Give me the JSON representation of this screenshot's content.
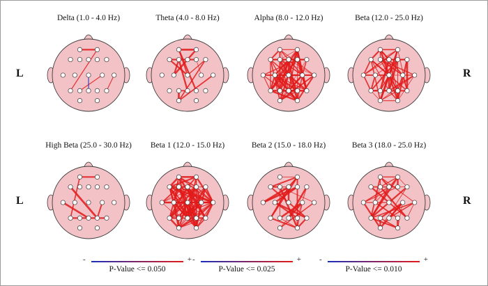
{
  "side_labels": {
    "left": "L",
    "right": "R"
  },
  "colors": {
    "head_fill": "#f2c2c6",
    "head_stroke": "#3a3a3a",
    "edge_strong": "#e21a1a",
    "edge_weak": "#1a2fb8",
    "electrode_fill": "#ffffff"
  },
  "panels": [
    {
      "title": "Delta (1.0 - 4.0 Hz)",
      "connection_density": 0.03,
      "has_weak_edge": true
    },
    {
      "title": "Theta (4.0 - 8.0 Hz)",
      "connection_density": 0.12,
      "has_weak_edge": false
    },
    {
      "title": "Alpha (8.0 - 12.0 Hz)",
      "connection_density": 0.45,
      "has_weak_edge": false
    },
    {
      "title": "Beta (12.0 - 25.0 Hz)",
      "connection_density": 0.35,
      "has_weak_edge": false
    },
    {
      "title": "High Beta (25.0 - 30.0 Hz)",
      "connection_density": 0.04,
      "has_weak_edge": false
    },
    {
      "title": "Beta 1 (12.0 - 15.0 Hz)",
      "connection_density": 0.5,
      "has_weak_edge": false
    },
    {
      "title": "Beta 2 (15.0 - 18.0 Hz)",
      "connection_density": 0.14,
      "has_weak_edge": false
    },
    {
      "title": "Beta 3 (18.0 - 25.0 Hz)",
      "connection_density": 0.16,
      "has_weak_edge": false
    }
  ],
  "legends": [
    {
      "minus": "-",
      "plus": "+",
      "caption": "P-Value <= 0.050"
    },
    {
      "minus": "-",
      "plus": "+",
      "caption": "P-Value <= 0.025"
    },
    {
      "minus": "-",
      "plus": "+",
      "caption": "P-Value <= 0.010"
    }
  ]
}
